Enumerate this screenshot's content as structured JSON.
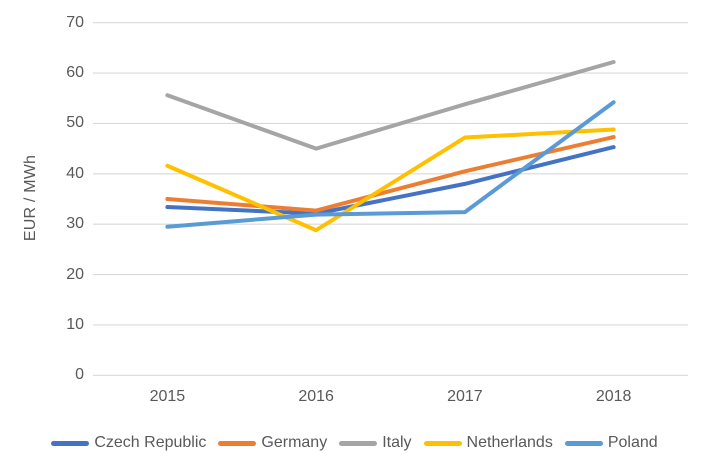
{
  "chart_data": {
    "type": "line",
    "title": "",
    "xlabel": "",
    "ylabel": "EUR / MWh",
    "categories": [
      "2015",
      "2016",
      "2017",
      "2018"
    ],
    "series": [
      {
        "name": "Czech Republic",
        "color": "#4472C4",
        "values": [
          33.4,
          32.1,
          38.0,
          45.3
        ]
      },
      {
        "name": "Germany",
        "color": "#ED7D31",
        "values": [
          35.0,
          32.7,
          40.5,
          47.3
        ]
      },
      {
        "name": "Italy",
        "color": "#A5A5A5",
        "values": [
          55.6,
          45.0,
          53.8,
          62.2
        ]
      },
      {
        "name": "Netherlands",
        "color": "#FFC000",
        "values": [
          41.6,
          28.8,
          47.2,
          48.8
        ]
      },
      {
        "name": "Poland",
        "color": "#5B9BD5",
        "values": [
          29.5,
          31.9,
          32.4,
          54.2
        ]
      }
    ],
    "ylim": [
      0,
      70
    ],
    "y_ticks": [
      0,
      10,
      20,
      30,
      40,
      50,
      60,
      70
    ],
    "grid": true,
    "legend_position": "bottom",
    "gridline_color": "#D9D9D9",
    "text_color": "#595959",
    "background_color": "#FFFFFF"
  }
}
